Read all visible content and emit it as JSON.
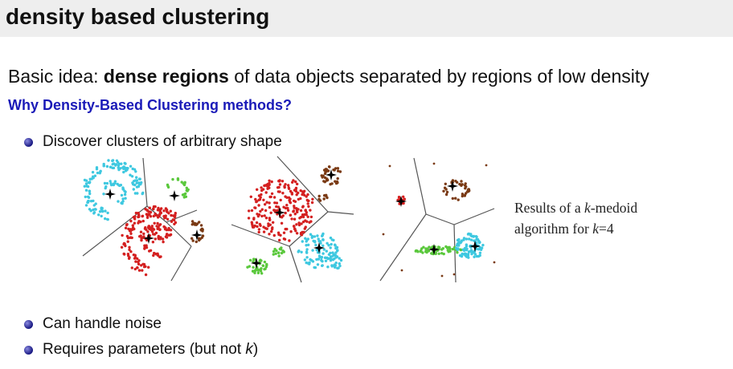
{
  "title": "density based clustering",
  "intro": {
    "prefix": "Basic idea: ",
    "emphasis": "dense regions",
    "suffix": " of data objects separated by regions of low density"
  },
  "subheading": "Why Density-Based Clustering methods?",
  "bullets": [
    "Discover clusters of arbitrary shape",
    "Can handle noise",
    "Requires parameters (but not ",
    "k",
    ")"
  ],
  "caption": {
    "line1_prefix": "Results of a ",
    "line1_italic": "k",
    "line1_suffix": "-medoid",
    "line2_prefix": "algorithm for ",
    "line2_italic": "k",
    "line2_suffix": "=4"
  },
  "colors": {
    "title_bg": "#eeeeee",
    "subheading": "#1a1ab8",
    "cyan": "#3ec8e0",
    "red": "#d42020",
    "green": "#5ac83c",
    "brown": "#7a3a14"
  }
}
